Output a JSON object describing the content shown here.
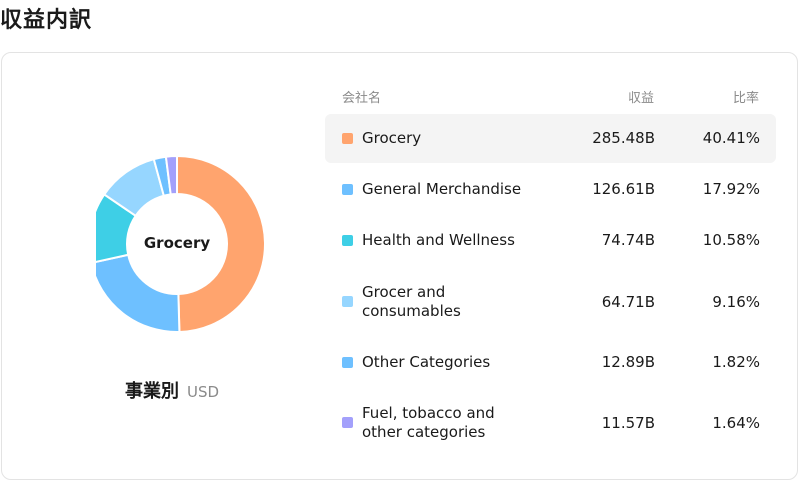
{
  "page": {
    "title": "収益内訳"
  },
  "summary": {
    "caption": "事業別",
    "unit": "USD",
    "selected": "Grocery"
  },
  "table": {
    "headers": {
      "company": "会社名",
      "revenue": "収益",
      "ratio": "比率"
    },
    "rows": [
      {
        "name": "Grocery",
        "revenue": "285.48B",
        "ratio": "40.41%",
        "color": "#FFA46E"
      },
      {
        "name": "General Merchandise",
        "revenue": "126.61B",
        "ratio": "17.92%",
        "color": "#6EC0FF"
      },
      {
        "name": "Health and Wellness",
        "revenue": "74.74B",
        "ratio": "10.58%",
        "color": "#3ECFE6"
      },
      {
        "name": "Grocer and consumables",
        "revenue": "64.71B",
        "ratio": "9.16%",
        "color": "#96D6FF"
      },
      {
        "name": "Other Categories",
        "revenue": "12.89B",
        "ratio": "1.82%",
        "color": "#6EC0FF"
      },
      {
        "name": "Fuel, tobacco and other categories",
        "revenue": "11.57B",
        "ratio": "1.64%",
        "color": "#A3A0FB"
      }
    ]
  },
  "chart_data": {
    "type": "pie",
    "subtype": "donut",
    "title": "",
    "categories": [
      "Grocery",
      "General Merchandise",
      "Health and Wellness",
      "Grocer and consumables",
      "Other Categories",
      "Fuel, tobacco and other categories"
    ],
    "values": [
      285.48,
      126.61,
      74.74,
      64.71,
      12.89,
      11.57
    ],
    "percent": [
      40.41,
      17.92,
      10.58,
      9.16,
      1.82,
      1.64
    ],
    "unit": "USD (billions)",
    "highlighted": "Grocery",
    "colors": [
      "#FFA46E",
      "#6EC0FF",
      "#3ECFE6",
      "#96D6FF",
      "#6EC0FF",
      "#A3A0FB"
    ]
  }
}
